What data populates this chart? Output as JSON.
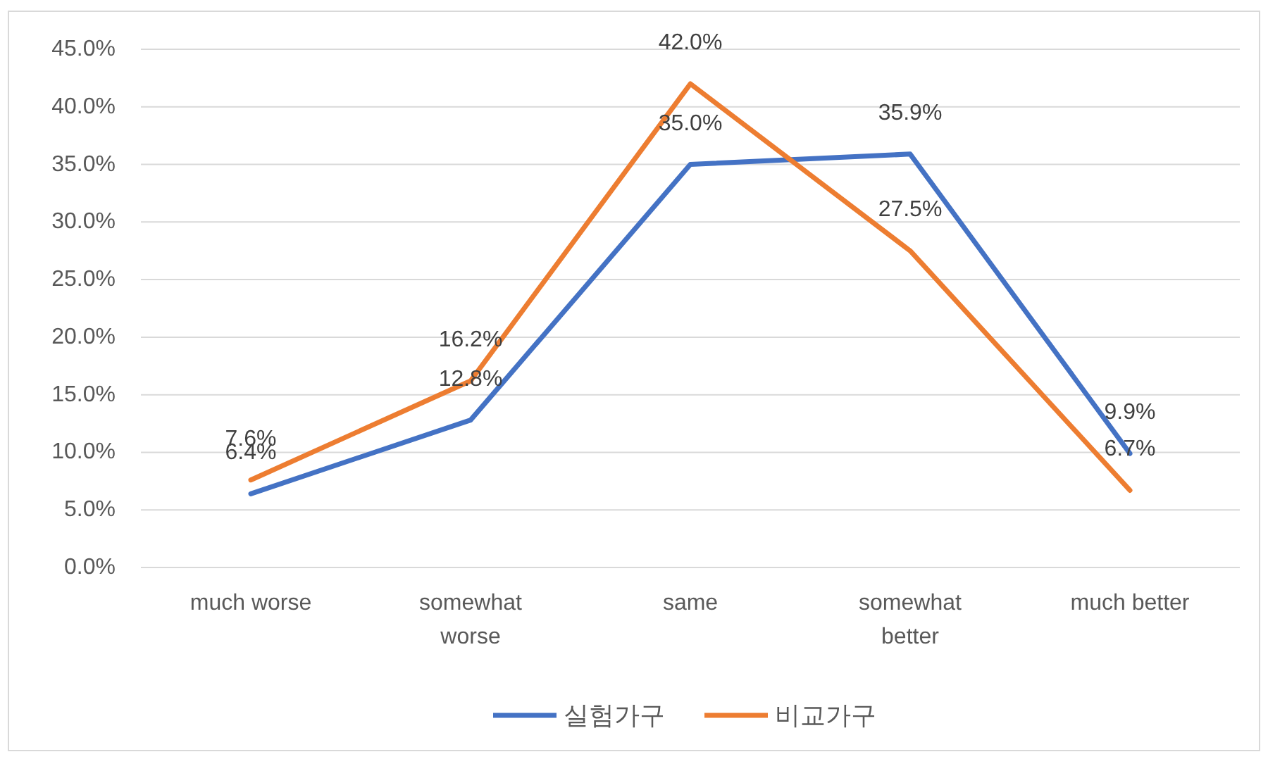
{
  "chart_data": {
    "type": "line",
    "categories": [
      "much worse",
      "somewhat worse",
      "same",
      "somewhat better",
      "much better"
    ],
    "series": [
      {
        "name": "실험가구",
        "color": "#4472c4",
        "values": [
          6.4,
          12.8,
          35.0,
          35.9,
          9.9
        ],
        "value_labels": [
          "6.4%",
          "12.8%",
          "35.0%",
          "35.9%",
          "9.9%"
        ]
      },
      {
        "name": "비교가구",
        "color": "#ed7d31",
        "values": [
          7.6,
          16.2,
          42.0,
          27.5,
          6.7
        ],
        "value_labels": [
          "7.6%",
          "16.2%",
          "42.0%",
          "27.5%",
          "6.7%"
        ]
      }
    ],
    "ylim": [
      0,
      45
    ],
    "yticks": [
      {
        "value": 0,
        "label": "0.0%"
      },
      {
        "value": 5,
        "label": "5.0%"
      },
      {
        "value": 10,
        "label": "10.0%"
      },
      {
        "value": 15,
        "label": "15.0%"
      },
      {
        "value": 20,
        "label": "20.0%"
      },
      {
        "value": 25,
        "label": "25.0%"
      },
      {
        "value": 30,
        "label": "30.0%"
      },
      {
        "value": 35,
        "label": "35.0%"
      },
      {
        "value": 40,
        "label": "40.0%"
      },
      {
        "value": 45,
        "label": "45.0%"
      }
    ],
    "grid": "y",
    "legend": "bottom"
  }
}
